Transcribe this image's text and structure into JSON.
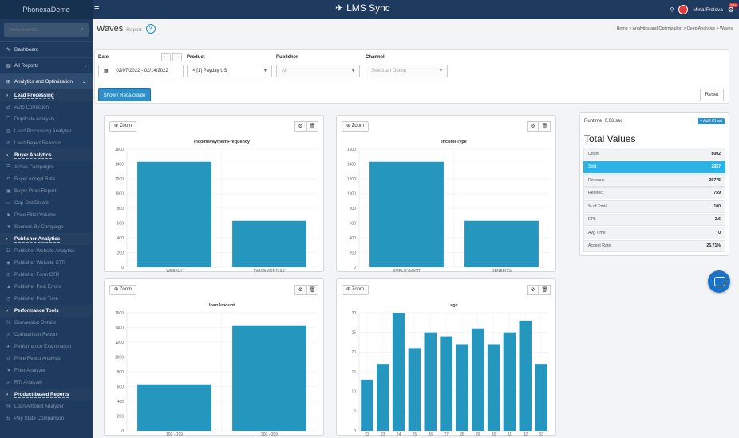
{
  "topbar": {
    "brand": "PhonexaDemo",
    "app_title": "LMS Sync",
    "user_name": "Mina Frolova",
    "notif_count": "50+"
  },
  "sidebar": {
    "search_placeholder": "Menu search...",
    "items": [
      {
        "label": "Dashboard",
        "kind": "top",
        "icon": "✎"
      },
      {
        "label": "All Reports",
        "kind": "top",
        "icon": "▤",
        "chev": "‹"
      },
      {
        "label": "Analytics and Optimization",
        "kind": "top open",
        "icon": "⊞",
        "chev": "⌄"
      },
      {
        "label": "Lead Processing",
        "kind": "group",
        "icon": "›"
      },
      {
        "label": "Auto Correction",
        "kind": "sub",
        "icon": "⇄"
      },
      {
        "label": "Duplicate Analysis",
        "kind": "sub",
        "icon": "❐"
      },
      {
        "label": "Lead Processing Analyzer",
        "kind": "sub",
        "icon": "▥"
      },
      {
        "label": "Lead Reject Reasons",
        "kind": "sub",
        "icon": "⊘"
      },
      {
        "label": "Buyer Analytics",
        "kind": "group",
        "icon": "›"
      },
      {
        "label": "Active Campaigns",
        "kind": "sub",
        "icon": "☰"
      },
      {
        "label": "Buyer Accept Rate",
        "kind": "sub",
        "icon": "⚖"
      },
      {
        "label": "Buyer Price Report",
        "kind": "sub",
        "icon": "▣"
      },
      {
        "label": "Cap-Out Details",
        "kind": "sub",
        "icon": "▭"
      },
      {
        "label": "Price Filter Volume",
        "kind": "sub",
        "icon": "♞"
      },
      {
        "label": "Sources By Campaign",
        "kind": "sub",
        "icon": "▼"
      },
      {
        "label": "Publisher Analytics",
        "kind": "group",
        "icon": "›"
      },
      {
        "label": "Publisher Website Analytics",
        "kind": "sub",
        "icon": "☷"
      },
      {
        "label": "Publisher Website CTR",
        "kind": "sub",
        "icon": "◉"
      },
      {
        "label": "Publisher Form CTR",
        "kind": "sub",
        "icon": "⊙"
      },
      {
        "label": "Publisher Post Errors",
        "kind": "sub",
        "icon": "▲"
      },
      {
        "label": "Publisher Post Time",
        "kind": "sub",
        "icon": "◷"
      },
      {
        "label": "Performance Tools",
        "kind": "group",
        "icon": "›"
      },
      {
        "label": "Conversion Details",
        "kind": "sub",
        "icon": "%"
      },
      {
        "label": "Comparison Report",
        "kind": "sub",
        "icon": "⩘"
      },
      {
        "label": "Performance Examination",
        "kind": "sub",
        "icon": "◕"
      },
      {
        "label": "Price Reject Analysis",
        "kind": "sub",
        "icon": "↺"
      },
      {
        "label": "Filter Analyzer",
        "kind": "sub",
        "icon": "▼"
      },
      {
        "label": "RTI Analyzer",
        "kind": "sub",
        "icon": "⩘"
      },
      {
        "label": "Product-based Reports",
        "kind": "group",
        "icon": "›"
      },
      {
        "label": "Loan Amount Analyzer",
        "kind": "sub",
        "icon": "%"
      },
      {
        "label": "Pay State Comparison",
        "kind": "sub",
        "icon": "⇆"
      }
    ]
  },
  "page": {
    "title": "Waves",
    "subtitle": "Report",
    "help_icon": "?",
    "breadcrumb": "Home  >  Analytics and Optimization  >  Deep Analytics  >  Waves"
  },
  "filters": {
    "date_label": "Date",
    "date_value": "02/07/2022 - 02/14/2022",
    "product_label": "Product",
    "product_value": "[1] Payday US",
    "publisher_label": "Publisher",
    "publisher_value": "All",
    "channel_label": "Channel",
    "channel_placeholder": "Select an Option",
    "show_button": "Show / Recalculate",
    "reset_button": "Reset"
  },
  "chart_ui": {
    "zoom_label": "Zoom"
  },
  "chart_data": [
    {
      "type": "bar",
      "title": "incomePaymentFrequency",
      "categories": [
        "WEEKLY",
        "TWICEMONTHLY"
      ],
      "values": [
        1430,
        630
      ],
      "ylim": [
        0,
        1600
      ],
      "yticks": [
        0,
        200,
        400,
        600,
        800,
        1000,
        1200,
        1400,
        1600
      ],
      "color": "#2596be"
    },
    {
      "type": "bar",
      "title": "incomeType",
      "categories": [
        "EMPLOYMENT",
        "BENEFITS"
      ],
      "values": [
        1430,
        630
      ],
      "ylim": [
        0,
        1600
      ],
      "yticks": [
        0,
        200,
        400,
        600,
        800,
        1000,
        1200,
        1400,
        1600
      ],
      "color": "#2596be"
    },
    {
      "type": "bar",
      "title": "loanAmount",
      "categories": [
        "100 - 199",
        "300 - 399"
      ],
      "values": [
        630,
        1430
      ],
      "ylim": [
        0,
        1600
      ],
      "yticks": [
        0,
        200,
        400,
        600,
        800,
        1000,
        1200,
        1400,
        1600
      ],
      "color": "#2596be"
    },
    {
      "type": "bar",
      "title": "age",
      "categories": [
        "22",
        "23",
        "24",
        "25",
        "26",
        "27",
        "28",
        "29",
        "30",
        "31",
        "32",
        "33"
      ],
      "values": [
        13,
        17,
        30,
        21,
        25,
        24,
        22,
        26,
        22,
        25,
        28,
        17
      ],
      "ylim": [
        0,
        30
      ],
      "yticks": [
        0,
        5,
        10,
        15,
        20,
        25,
        30
      ],
      "color": "#2596be"
    }
  ],
  "stats_panel": {
    "runtime": "Runtime: 0.06 sec",
    "add_chart": "+ Add Chart",
    "title": "Total Values",
    "rows": [
      {
        "label": "Count",
        "value": "8002",
        "active": false
      },
      {
        "label": "Sold",
        "value": "2057",
        "active": true
      },
      {
        "label": "Revenue",
        "value": "20775",
        "active": false
      },
      {
        "label": "Redirect",
        "value": "759",
        "active": false
      },
      {
        "label": "% of Total",
        "value": "100",
        "active": false
      },
      {
        "label": "EPL",
        "value": "2.6",
        "active": false
      },
      {
        "label": "Avg Time",
        "value": "0",
        "active": false
      },
      {
        "label": "Accept Rate",
        "value": "25.71%",
        "active": false
      }
    ]
  }
}
